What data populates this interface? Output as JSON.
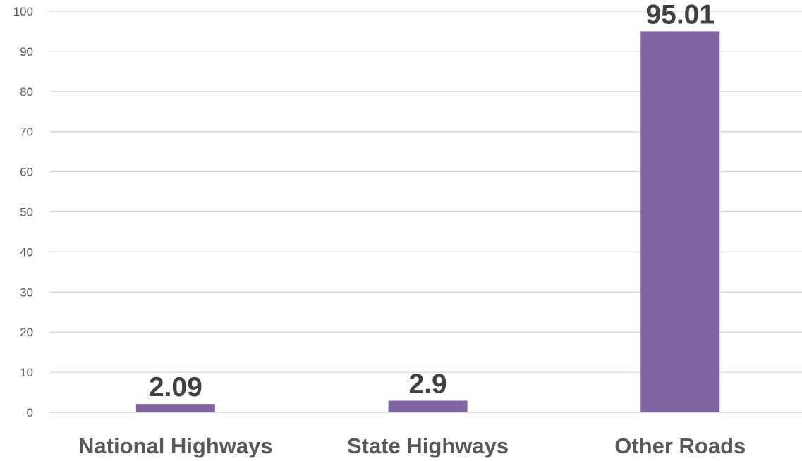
{
  "chart_data": {
    "type": "bar",
    "categories": [
      "National Highways",
      "State Highways",
      "Other Roads"
    ],
    "values": [
      2.09,
      2.9,
      95.01
    ],
    "data_labels": [
      "2.09",
      "2.9",
      "95.01"
    ],
    "title": "",
    "xlabel": "",
    "ylabel": "",
    "ylim": [
      0,
      100
    ],
    "yticks": [
      "0",
      "10",
      "20",
      "30",
      "40",
      "50",
      "60",
      "70",
      "80",
      "90",
      "100"
    ],
    "grid": true,
    "legend": "none",
    "bar_color": "#8064a2"
  }
}
